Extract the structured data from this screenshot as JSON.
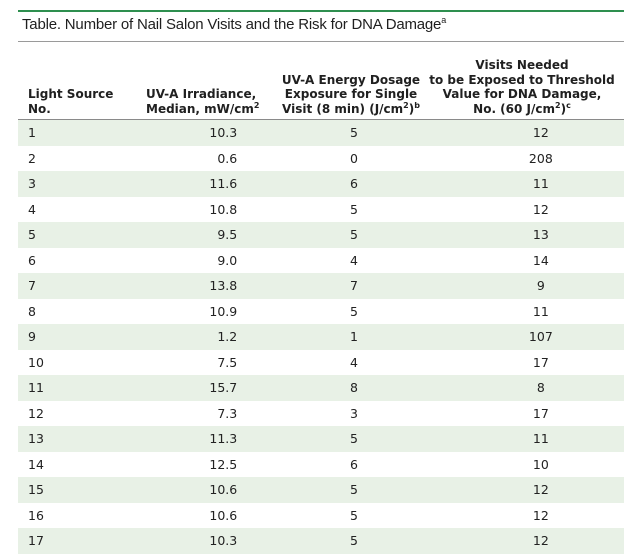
{
  "title": {
    "text": "Table. Number of Nail Salon Visits and the Risk for DNA Damage",
    "footnote_mark": "a"
  },
  "headers": {
    "col1": [
      "Light Source",
      "No."
    ],
    "col2": [
      "UV-A Irradiance,",
      "Median, mW/cm",
      "2"
    ],
    "col3": [
      "UV-A Energy Dosage",
      "Exposure for Single",
      "Visit (8 min) (J/cm",
      "2",
      ")",
      "b"
    ],
    "col4": [
      "Visits Needed",
      "to be Exposed to Threshold",
      "Value for DNA Damage,",
      "No. (60 J/cm",
      "2",
      ")",
      "c"
    ]
  },
  "rows": [
    {
      "no": "1",
      "irr": "10.3",
      "dose": "5",
      "visits": "12"
    },
    {
      "no": "2",
      "irr": "0.6",
      "dose": "0",
      "visits": "208"
    },
    {
      "no": "3",
      "irr": "11.6",
      "dose": "6",
      "visits": "11"
    },
    {
      "no": "4",
      "irr": "10.8",
      "dose": "5",
      "visits": "12"
    },
    {
      "no": "5",
      "irr": "9.5",
      "dose": "5",
      "visits": "13"
    },
    {
      "no": "6",
      "irr": "9.0",
      "dose": "4",
      "visits": "14"
    },
    {
      "no": "7",
      "irr": "13.8",
      "dose": "7",
      "visits": "9"
    },
    {
      "no": "8",
      "irr": "10.9",
      "dose": "5",
      "visits": "11"
    },
    {
      "no": "9",
      "irr": "1.2",
      "dose": "1",
      "visits": "107"
    },
    {
      "no": "10",
      "irr": "7.5",
      "dose": "4",
      "visits": "17"
    },
    {
      "no": "11",
      "irr": "15.7",
      "dose": "8",
      "visits": "8"
    },
    {
      "no": "12",
      "irr": "7.3",
      "dose": "3",
      "visits": "17"
    },
    {
      "no": "13",
      "irr": "11.3",
      "dose": "5",
      "visits": "11"
    },
    {
      "no": "14",
      "irr": "12.5",
      "dose": "6",
      "visits": "10"
    },
    {
      "no": "15",
      "irr": "10.6",
      "dose": "5",
      "visits": "12"
    },
    {
      "no": "16",
      "irr": "10.6",
      "dose": "5",
      "visits": "12"
    },
    {
      "no": "17",
      "irr": "10.3",
      "dose": "5",
      "visits": "12"
    }
  ],
  "colors": {
    "accent_line": "#2e8f4f",
    "stripe": "#e8f1e6"
  }
}
